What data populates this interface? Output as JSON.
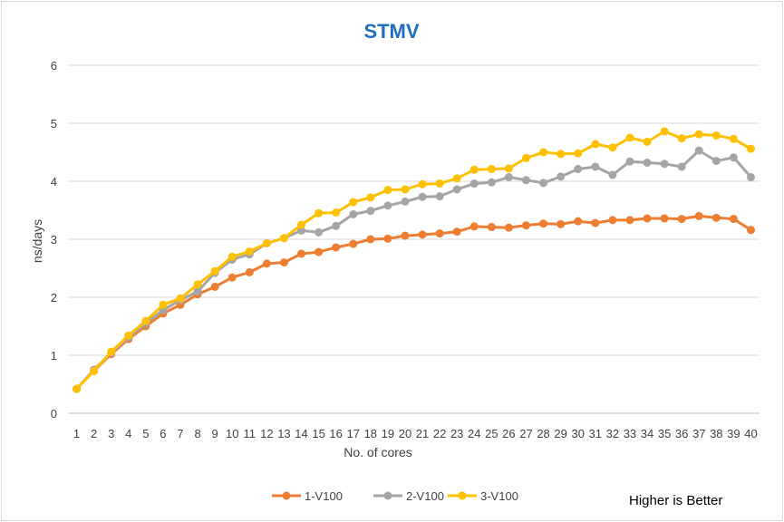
{
  "chart_data": {
    "type": "line",
    "title": "STMV",
    "xlabel": "No. of cores",
    "ylabel": "ns/days",
    "annotation": "Higher is Better",
    "ylim": [
      0,
      6
    ],
    "yticks": [
      0,
      1,
      2,
      3,
      4,
      5,
      6
    ],
    "grid": "horizontal",
    "legend_position": "bottom",
    "title_color": "#1f6fbf",
    "x": [
      1,
      2,
      3,
      4,
      5,
      6,
      7,
      8,
      9,
      10,
      11,
      12,
      13,
      14,
      15,
      16,
      17,
      18,
      19,
      20,
      21,
      22,
      23,
      24,
      25,
      26,
      27,
      28,
      29,
      30,
      31,
      32,
      33,
      34,
      35,
      36,
      37,
      38,
      39,
      40
    ],
    "series": [
      {
        "name": "1-V100",
        "color": "#ed7d31",
        "values": [
          0.42,
          0.73,
          1.02,
          1.28,
          1.5,
          1.72,
          1.87,
          2.05,
          2.18,
          2.34,
          2.43,
          2.58,
          2.6,
          2.75,
          2.78,
          2.86,
          2.92,
          3.0,
          3.01,
          3.06,
          3.08,
          3.1,
          3.13,
          3.22,
          3.21,
          3.2,
          3.24,
          3.27,
          3.26,
          3.31,
          3.28,
          3.33,
          3.33,
          3.36,
          3.36,
          3.35,
          3.4,
          3.37,
          3.35,
          3.16
        ]
      },
      {
        "name": "2-V100",
        "color": "#a5a5a5",
        "values": [
          0.42,
          0.75,
          1.04,
          1.31,
          1.55,
          1.78,
          1.95,
          2.1,
          2.42,
          2.65,
          2.74,
          2.93,
          3.02,
          3.15,
          3.12,
          3.23,
          3.43,
          3.49,
          3.58,
          3.65,
          3.73,
          3.74,
          3.86,
          3.96,
          3.98,
          4.07,
          4.02,
          3.97,
          4.08,
          4.21,
          4.25,
          4.11,
          4.34,
          4.32,
          4.3,
          4.25,
          4.53,
          4.35,
          4.41,
          4.07
        ]
      },
      {
        "name": "3-V100",
        "color": "#ffc000",
        "values": [
          0.42,
          0.73,
          1.06,
          1.34,
          1.59,
          1.87,
          1.98,
          2.22,
          2.45,
          2.7,
          2.79,
          2.93,
          3.02,
          3.25,
          3.45,
          3.46,
          3.64,
          3.72,
          3.85,
          3.86,
          3.95,
          3.96,
          4.05,
          4.2,
          4.21,
          4.22,
          4.4,
          4.5,
          4.47,
          4.48,
          4.64,
          4.58,
          4.75,
          4.68,
          4.86,
          4.74,
          4.81,
          4.79,
          4.73,
          4.56
        ]
      }
    ]
  }
}
